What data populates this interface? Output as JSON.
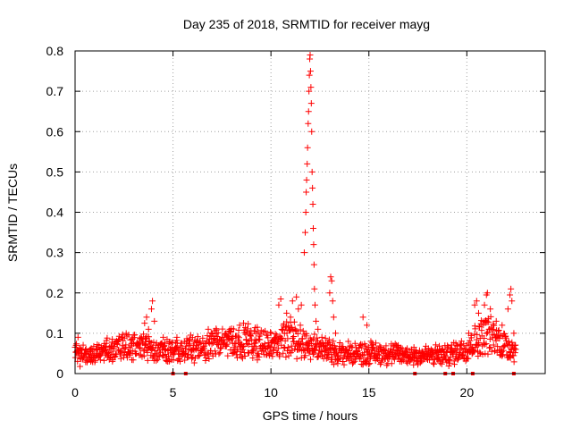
{
  "chart_data": {
    "type": "scatter",
    "title": "Day 235 of 2018, SRMTID for receiver mayg",
    "xlabel": "GPS time / hours",
    "ylabel": "SRMTID / TECUs",
    "xlim": [
      0,
      24
    ],
    "ylim": [
      0,
      0.8
    ],
    "x_ticks": [
      "0",
      "5",
      "10",
      "15",
      "20"
    ],
    "x_tick_values": [
      0,
      5,
      10,
      15,
      20
    ],
    "y_ticks": [
      "0",
      "0.1",
      "0.2",
      "0.3",
      "0.4",
      "0.5",
      "0.6",
      "0.7",
      "0.8"
    ],
    "y_tick_values": [
      0,
      0.1,
      0.2,
      0.3,
      0.4,
      0.5,
      0.6,
      0.7,
      0.8
    ],
    "grid": true,
    "marker": "+",
    "color": "#ff0000",
    "baseline_profile": [
      [
        0.0,
        0.045
      ],
      [
        1.0,
        0.045
      ],
      [
        2.0,
        0.065
      ],
      [
        3.0,
        0.07
      ],
      [
        4.0,
        0.065
      ],
      [
        5.0,
        0.055
      ],
      [
        6.0,
        0.06
      ],
      [
        7.0,
        0.07
      ],
      [
        8.0,
        0.075
      ],
      [
        9.0,
        0.08
      ],
      [
        10.0,
        0.07
      ],
      [
        11.0,
        0.09
      ],
      [
        12.0,
        0.07
      ],
      [
        13.0,
        0.055
      ],
      [
        14.0,
        0.05
      ],
      [
        15.0,
        0.05
      ],
      [
        16.0,
        0.05
      ],
      [
        17.0,
        0.045
      ],
      [
        18.0,
        0.045
      ],
      [
        19.0,
        0.045
      ],
      [
        20.0,
        0.065
      ],
      [
        21.0,
        0.1
      ],
      [
        22.0,
        0.07
      ],
      [
        22.5,
        0.06
      ]
    ],
    "points": [
      [
        0.05,
        0.07
      ],
      [
        0.15,
        0.09
      ],
      [
        0.3,
        0.06
      ],
      [
        0.55,
        0.05
      ],
      [
        0.8,
        0.03
      ],
      [
        1.6,
        0.075
      ],
      [
        1.9,
        0.085
      ],
      [
        2.4,
        0.09
      ],
      [
        2.9,
        0.085
      ],
      [
        3.55,
        0.125
      ],
      [
        3.65,
        0.14
      ],
      [
        3.75,
        0.11
      ],
      [
        3.9,
        0.16
      ],
      [
        3.95,
        0.18
      ],
      [
        4.05,
        0.13
      ],
      [
        4.5,
        0.09
      ],
      [
        4.8,
        0.03
      ],
      [
        5.2,
        0.09
      ],
      [
        5.8,
        0.07
      ],
      [
        6.8,
        0.11
      ],
      [
        7.2,
        0.1
      ],
      [
        7.9,
        0.11
      ],
      [
        8.4,
        0.12
      ],
      [
        8.6,
        0.125
      ],
      [
        9.3,
        0.115
      ],
      [
        10.0,
        0.1
      ],
      [
        10.4,
        0.17
      ],
      [
        10.5,
        0.185
      ],
      [
        10.8,
        0.15
      ],
      [
        11.0,
        0.14
      ],
      [
        11.1,
        0.18
      ],
      [
        11.3,
        0.19
      ],
      [
        11.4,
        0.16
      ],
      [
        11.5,
        0.12
      ],
      [
        11.55,
        0.17
      ],
      [
        11.7,
        0.3
      ],
      [
        11.75,
        0.35
      ],
      [
        11.78,
        0.4
      ],
      [
        11.8,
        0.45
      ],
      [
        11.82,
        0.48
      ],
      [
        11.85,
        0.52
      ],
      [
        11.87,
        0.56
      ],
      [
        11.9,
        0.62
      ],
      [
        11.92,
        0.65
      ],
      [
        11.94,
        0.7
      ],
      [
        11.96,
        0.74
      ],
      [
        11.98,
        0.78
      ],
      [
        12.0,
        0.79
      ],
      [
        12.02,
        0.75
      ],
      [
        12.04,
        0.71
      ],
      [
        12.06,
        0.67
      ],
      [
        12.08,
        0.6
      ],
      [
        12.1,
        0.5
      ],
      [
        12.12,
        0.46
      ],
      [
        12.14,
        0.42
      ],
      [
        12.16,
        0.36
      ],
      [
        12.18,
        0.32
      ],
      [
        12.2,
        0.27
      ],
      [
        12.22,
        0.21
      ],
      [
        12.25,
        0.17
      ],
      [
        12.3,
        0.13
      ],
      [
        12.4,
        0.11
      ],
      [
        12.6,
        0.09
      ],
      [
        12.8,
        0.06
      ],
      [
        13.0,
        0.2
      ],
      [
        13.05,
        0.24
      ],
      [
        13.1,
        0.23
      ],
      [
        13.15,
        0.18
      ],
      [
        13.2,
        0.14
      ],
      [
        13.3,
        0.1
      ],
      [
        14.7,
        0.14
      ],
      [
        14.9,
        0.12
      ],
      [
        15.1,
        0.08
      ],
      [
        16.5,
        0.07
      ],
      [
        17.3,
        0.065
      ],
      [
        18.5,
        0.06
      ],
      [
        19.5,
        0.06
      ],
      [
        20.1,
        0.1
      ],
      [
        20.4,
        0.17
      ],
      [
        20.5,
        0.18
      ],
      [
        20.6,
        0.15
      ],
      [
        20.9,
        0.17
      ],
      [
        21.0,
        0.195
      ],
      [
        21.05,
        0.2
      ],
      [
        21.2,
        0.16
      ],
      [
        21.5,
        0.13
      ],
      [
        21.8,
        0.12
      ],
      [
        22.1,
        0.16
      ],
      [
        22.2,
        0.195
      ],
      [
        22.25,
        0.21
      ],
      [
        22.3,
        0.18
      ],
      [
        22.4,
        0.1
      ],
      [
        22.5,
        0.06
      ]
    ],
    "bottom_markers": [
      5.0,
      5.65,
      17.35,
      18.9,
      19.3,
      20.3,
      22.4
    ]
  }
}
